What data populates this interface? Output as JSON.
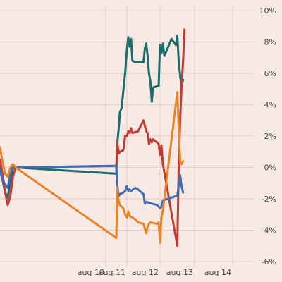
{
  "chart_data": {
    "type": "line",
    "title": "",
    "xlabel": "",
    "ylabel": "",
    "x_ticks": [
      "aug 10",
      "aug 11",
      "aug 12",
      "aug 13",
      "aug 14"
    ],
    "y_ticks": [
      "10%",
      "8%",
      "6%",
      "4%",
      "2%",
      "0%",
      "-2%",
      "-4%",
      "-6%"
    ],
    "ylim": [
      -6,
      10
    ],
    "xlim": [
      "aug 9 00:00",
      "aug 14 24:00"
    ],
    "grid": true,
    "legend": "none",
    "y_axis_position": "right",
    "series": [
      {
        "color": "#1a6e6b",
        "points": [
          [
            "aug 9 00:00",
            0.0
          ],
          [
            "aug 9 01:00",
            -0.8
          ],
          [
            "aug 9 02:00",
            -1.6
          ],
          [
            "aug 9 03:00",
            -1.9
          ],
          [
            "aug 9 04:00",
            -0.9
          ],
          [
            "aug 9 05:00",
            0.0
          ],
          [
            "aug 9 06:00",
            0.0
          ],
          [
            "aug 10 12:00",
            -0.4
          ],
          [
            "aug 10 13:00",
            1.5
          ],
          [
            "aug 10 15:00",
            2.7
          ],
          [
            "aug 10 16:00",
            3.5
          ],
          [
            "aug 10 18:00",
            3.8
          ],
          [
            "aug 10 22:00",
            6.0
          ],
          [
            "aug 11 00:00",
            7.5
          ],
          [
            "aug 11 01:00",
            8.3
          ],
          [
            "aug 11 02:00",
            7.7
          ],
          [
            "aug 11 03:00",
            8.2
          ],
          [
            "aug 11 04:00",
            6.8
          ],
          [
            "aug 11 06:00",
            6.7
          ],
          [
            "aug 11 12:00",
            6.7
          ],
          [
            "aug 11 13:00",
            7.6
          ],
          [
            "aug 11 14:00",
            7.9
          ],
          [
            "aug 11 15:00",
            7.1
          ],
          [
            "aug 11 16:00",
            6.0
          ],
          [
            "aug 11 17:00",
            5.5
          ],
          [
            "aug 11 18:00",
            4.2
          ],
          [
            "aug 11 19:00",
            5.1
          ],
          [
            "aug 11 23:00",
            5.2
          ],
          [
            "aug 12 00:00",
            7.8
          ],
          [
            "aug 12 01:00",
            7.3
          ],
          [
            "aug 12 02:00",
            7.9
          ],
          [
            "aug 12 03:00",
            7.1
          ],
          [
            "aug 12 08:00",
            8.2
          ],
          [
            "aug 12 11:00",
            7.8
          ],
          [
            "aug 12 12:00",
            8.4
          ],
          [
            "aug 12 13:00",
            6.8
          ],
          [
            "aug 12 14:00",
            5.8
          ],
          [
            "aug 12 15:00",
            5.2
          ],
          [
            "aug 12 16:00",
            5.6
          ]
        ]
      },
      {
        "color": "#c03c35",
        "points": [
          [
            "aug 9 00:00",
            0.5
          ],
          [
            "aug 9 01:00",
            -0.5
          ],
          [
            "aug 9 02:00",
            -1.6
          ],
          [
            "aug 9 03:00",
            -2.4
          ],
          [
            "aug 9 04:00",
            -1.8
          ],
          [
            "aug 9 05:00",
            -0.6
          ],
          [
            "aug 9 06:00",
            0.0
          ],
          [
            "aug 10 12:00",
            0.1
          ],
          [
            "aug 10 13:00",
            1.6
          ],
          [
            "aug 10 14:00",
            1.2
          ],
          [
            "aug 10 15:00",
            0.9
          ],
          [
            "aug 10 16:00",
            1.0
          ],
          [
            "aug 10 20:00",
            1.1
          ],
          [
            "aug 10 22:00",
            2.0
          ],
          [
            "aug 11 00:00",
            2.0
          ],
          [
            "aug 11 01:00",
            2.3
          ],
          [
            "aug 11 02:00",
            2.2
          ],
          [
            "aug 11 03:00",
            2.5
          ],
          [
            "aug 11 04:00",
            2.2
          ],
          [
            "aug 11 08:00",
            2.3
          ],
          [
            "aug 11 12:00",
            3.0
          ],
          [
            "aug 11 14:00",
            2.3
          ],
          [
            "aug 11 15:00",
            2.2
          ],
          [
            "aug 11 16:00",
            1.5
          ],
          [
            "aug 11 17:00",
            1.8
          ],
          [
            "aug 11 18:00",
            1.6
          ],
          [
            "aug 11 19:00",
            1.8
          ],
          [
            "aug 11 23:00",
            1.5
          ],
          [
            "aug 12 00:00",
            0.8
          ],
          [
            "aug 12 01:00",
            1.4
          ],
          [
            "aug 12 02:00",
            0.2
          ],
          [
            "aug 12 12:00",
            -5.0
          ],
          [
            "aug 12 13:00",
            0.0
          ],
          [
            "aug 12 14:00",
            3.1
          ],
          [
            "aug 12 15:00",
            5.2
          ],
          [
            "aug 12 16:00",
            6.8
          ],
          [
            "aug 12 17:00",
            8.8
          ]
        ]
      },
      {
        "color": "#3f6db3",
        "points": [
          [
            "aug 9 00:00",
            -0.2
          ],
          [
            "aug 9 01:00",
            -0.8
          ],
          [
            "aug 9 02:00",
            -1.1
          ],
          [
            "aug 9 03:00",
            -1.3
          ],
          [
            "aug 9 04:00",
            -0.4
          ],
          [
            "aug 9 05:00",
            0.2
          ],
          [
            "aug 9 06:00",
            0.0
          ],
          [
            "aug 10 12:00",
            0.1
          ],
          [
            "aug 10 13:00",
            -1.0
          ],
          [
            "aug 10 14:00",
            -1.6
          ],
          [
            "aug 10 15:00",
            -1.8
          ],
          [
            "aug 10 16:00",
            -1.7
          ],
          [
            "aug 10 20:00",
            -1.6
          ],
          [
            "aug 10 22:00",
            -1.5
          ],
          [
            "aug 11 00:00",
            -1.2
          ],
          [
            "aug 11 01:00",
            -1.5
          ],
          [
            "aug 11 02:00",
            -1.4
          ],
          [
            "aug 11 03:00",
            -1.5
          ],
          [
            "aug 11 06:00",
            -1.3
          ],
          [
            "aug 11 08:00",
            -1.4
          ],
          [
            "aug 11 12:00",
            -1.7
          ],
          [
            "aug 11 13:00",
            -2.3
          ],
          [
            "aug 11 14:00",
            -2.2
          ],
          [
            "aug 11 22:00",
            -2.4
          ],
          [
            "aug 12 00:00",
            -2.6
          ],
          [
            "aug 12 01:00",
            -2.5
          ],
          [
            "aug 12 02:00",
            -2.1
          ],
          [
            "aug 12 12:00",
            -1.8
          ],
          [
            "aug 12 14:00",
            -0.5
          ],
          [
            "aug 12 15:00",
            -1.2
          ],
          [
            "aug 12 16:00",
            -1.6
          ]
        ]
      },
      {
        "color": "#e8832a",
        "points": [
          [
            "aug 9 00:00",
            1.3
          ],
          [
            "aug 9 01:00",
            0.3
          ],
          [
            "aug 9 02:00",
            -0.4
          ],
          [
            "aug 9 03:00",
            -0.6
          ],
          [
            "aug 9 04:00",
            0.0
          ],
          [
            "aug 9 05:00",
            0.2
          ],
          [
            "aug 9 06:00",
            0.0
          ],
          [
            "aug 10 12:00",
            -4.5
          ],
          [
            "aug 10 13:00",
            -1.3
          ],
          [
            "aug 10 14:00",
            -2.0
          ],
          [
            "aug 10 15:00",
            -2.2
          ],
          [
            "aug 10 16:00",
            -2.4
          ],
          [
            "aug 10 20:00",
            -2.6
          ],
          [
            "aug 10 22:00",
            -3.0
          ],
          [
            "aug 11 00:00",
            -3.2
          ],
          [
            "aug 11 01:00",
            -2.8
          ],
          [
            "aug 11 02:00",
            -3.1
          ],
          [
            "aug 11 06:00",
            -3.3
          ],
          [
            "aug 11 08:00",
            -3.5
          ],
          [
            "aug 11 12:00",
            -3.6
          ],
          [
            "aug 11 13:00",
            -3.9
          ],
          [
            "aug 11 14:00",
            -4.2
          ],
          [
            "aug 11 15:00",
            -3.8
          ],
          [
            "aug 11 16:00",
            -3.6
          ],
          [
            "aug 11 17:00",
            -3.5
          ],
          [
            "aug 11 22:00",
            -3.6
          ],
          [
            "aug 11 23:00",
            -3.5
          ],
          [
            "aug 12 00:00",
            -4.8
          ],
          [
            "aug 12 01:00",
            -3.2
          ],
          [
            "aug 12 02:00",
            -2.7
          ],
          [
            "aug 12 12:00",
            4.8
          ],
          [
            "aug 12 13:00",
            2.5
          ],
          [
            "aug 12 14:00",
            0.4
          ],
          [
            "aug 12 15:00",
            0.2
          ],
          [
            "aug 12 16:00",
            0.4
          ]
        ]
      }
    ]
  }
}
